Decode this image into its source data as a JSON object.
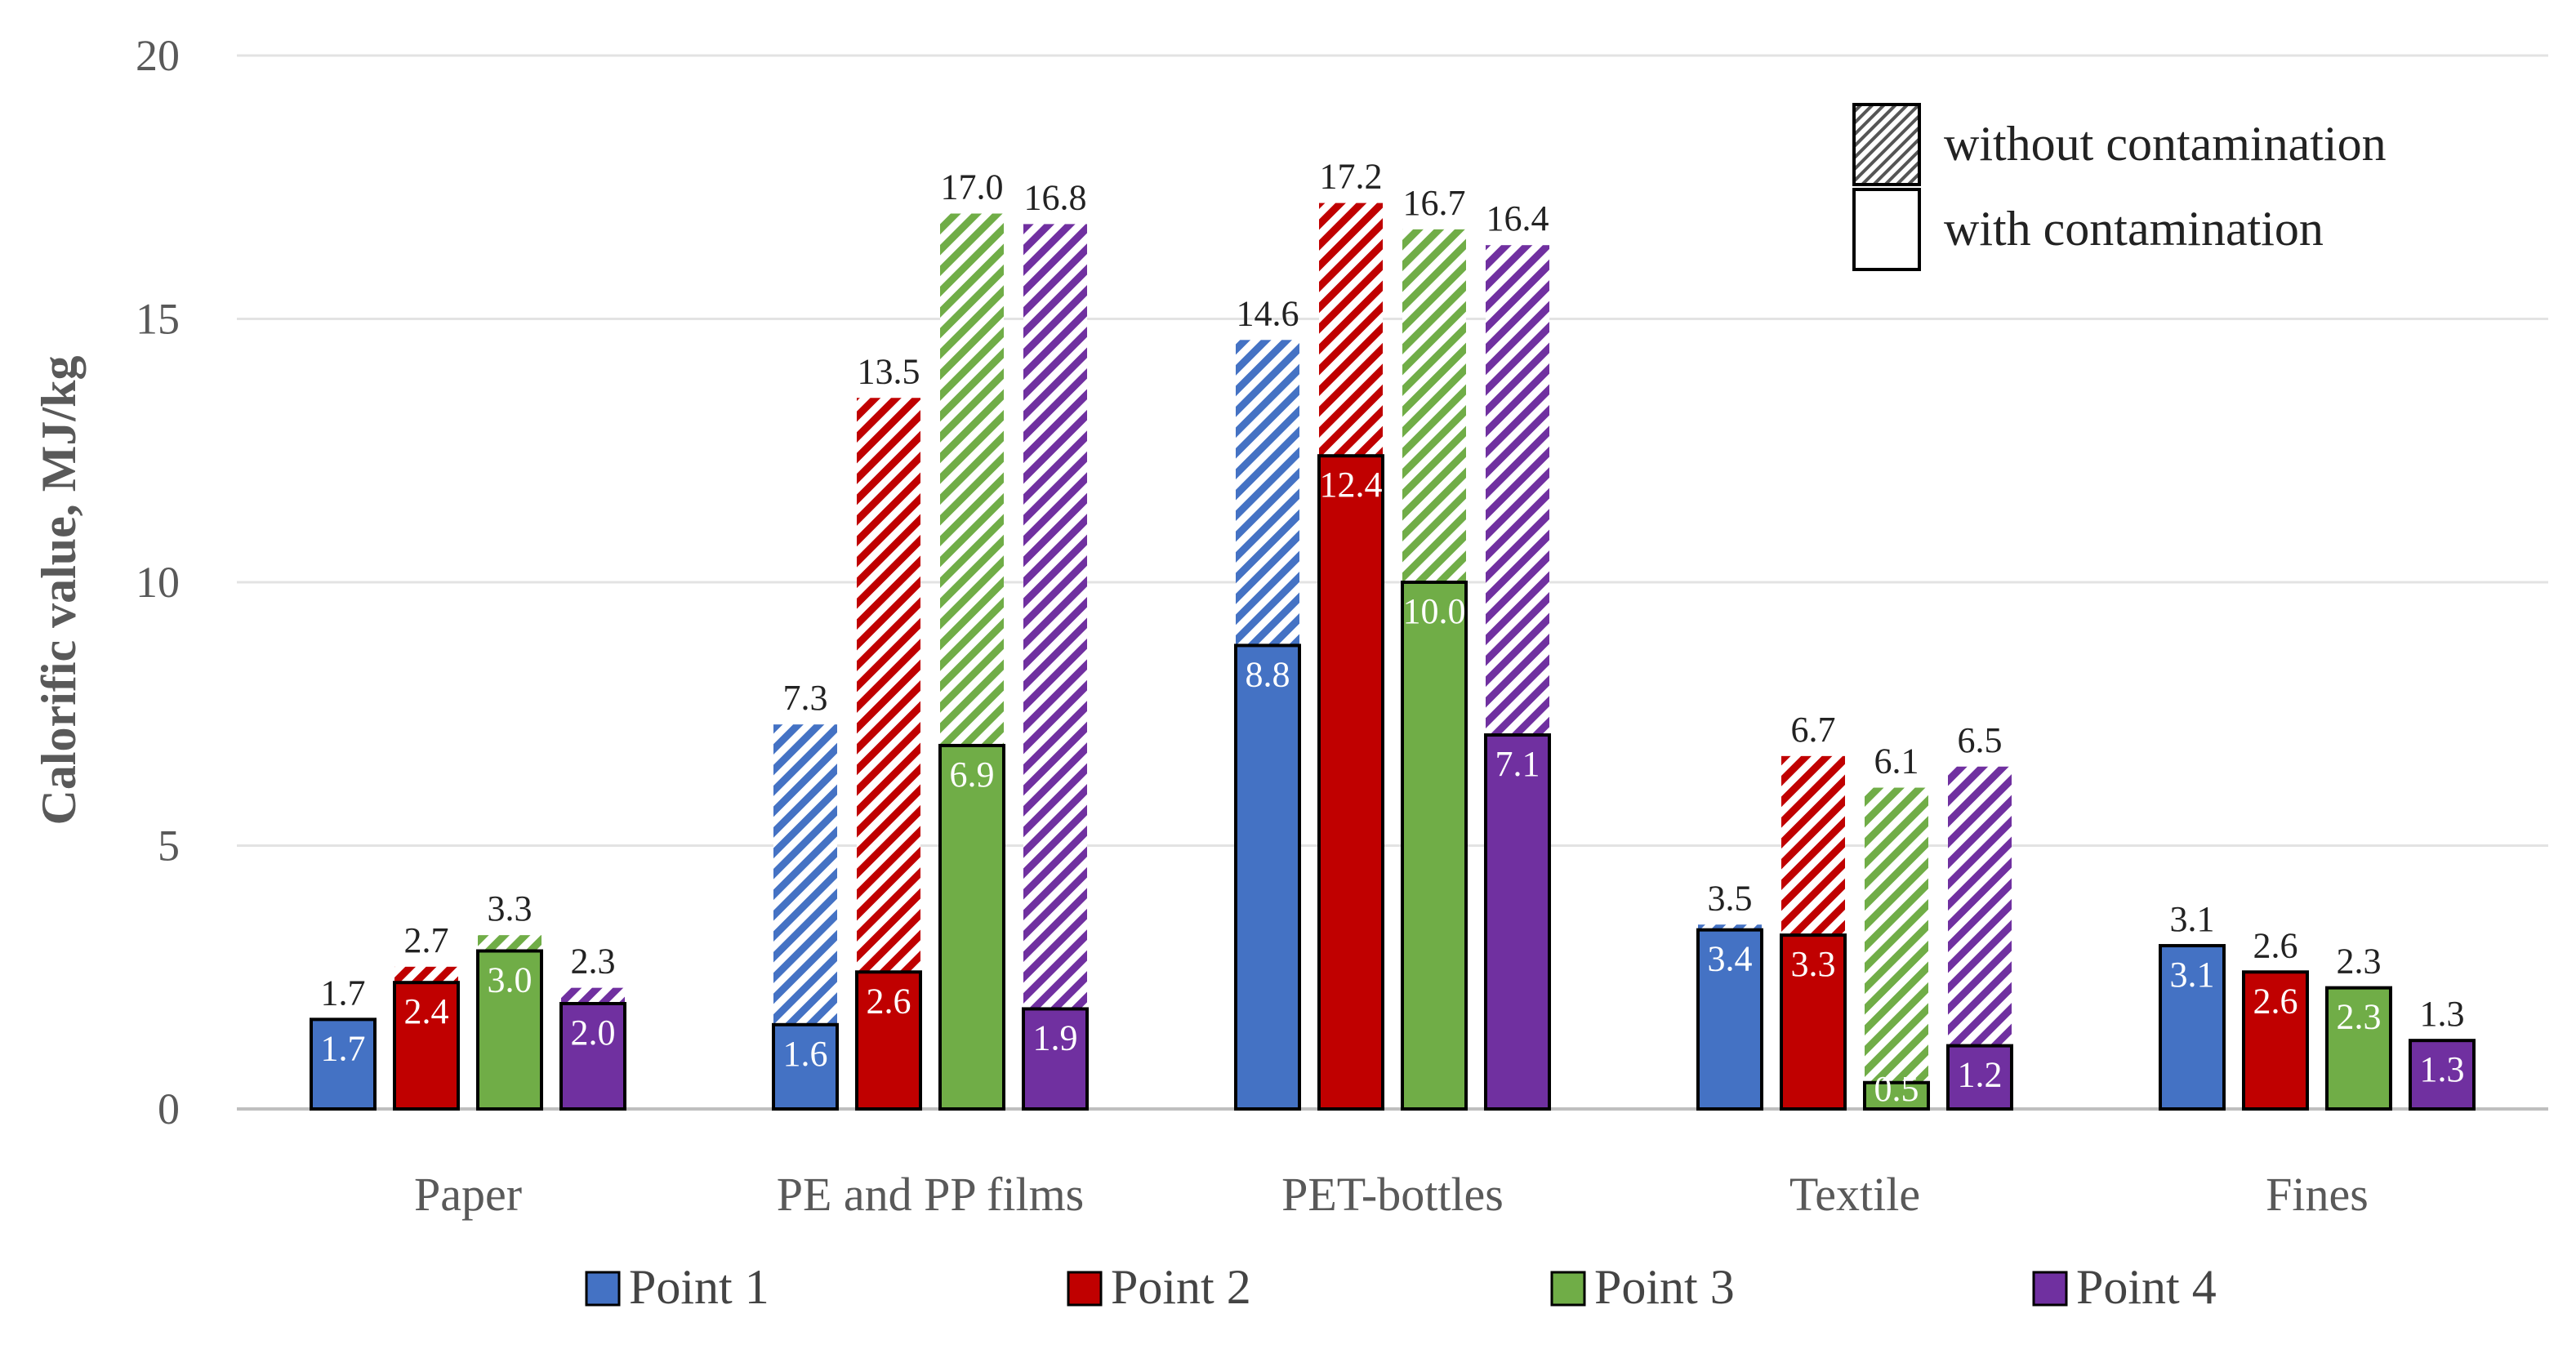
{
  "chart_data": {
    "type": "bar",
    "title": "",
    "xlabel": "",
    "ylabel": "Calorific value, MJ/kg",
    "ylim": [
      0,
      20
    ],
    "yticks": [
      0,
      5,
      10,
      15,
      20
    ],
    "grid": true,
    "categories": [
      "Paper",
      "PE and PP films",
      "PET-bottles",
      "Textile",
      "Fines"
    ],
    "series": [
      {
        "name": "Point 1",
        "color": "#4472C4",
        "without_contamination": [
          1.7,
          7.3,
          14.6,
          3.5,
          3.1
        ],
        "with_contamination": [
          1.7,
          1.6,
          8.8,
          3.4,
          3.1
        ]
      },
      {
        "name": "Point 2",
        "color": "#C00000",
        "without_contamination": [
          2.7,
          13.5,
          17.2,
          6.7,
          2.6
        ],
        "with_contamination": [
          2.4,
          2.6,
          12.4,
          3.3,
          2.6
        ]
      },
      {
        "name": "Point 3",
        "color": "#70AD47",
        "without_contamination": [
          3.3,
          17.0,
          16.7,
          6.1,
          2.3
        ],
        "with_contamination": [
          3.0,
          6.9,
          10.0,
          0.5,
          2.3
        ]
      },
      {
        "name": "Point 4",
        "color": "#7030A0",
        "without_contamination": [
          2.3,
          16.8,
          16.4,
          6.5,
          1.3
        ],
        "with_contamination": [
          2.0,
          1.9,
          7.1,
          1.2,
          1.3
        ]
      }
    ],
    "pattern_legend": {
      "without": "without contamination",
      "with": "with contamination",
      "position": "top-right"
    },
    "series_legend_position": "bottom"
  }
}
